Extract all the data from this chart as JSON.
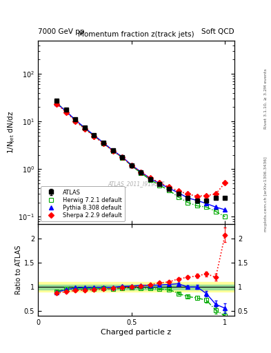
{
  "title_top_left": "7000 GeV pp",
  "title_top_right": "Soft QCD",
  "main_title": "Momentum fraction z(track jets)",
  "watermark": "ATLAS_2011_I919017",
  "right_label_top": "Rivet 3.1.10, ≥ 3.2M events",
  "right_label_bottom": "mcplots.cern.ch [arXiv:1306.3436]",
  "xlabel": "Charged particle z",
  "ylabel_main": "1/N$_\\mathregular{jet}$ dN/dz",
  "ylabel_ratio": "Ratio to ATLAS",
  "xlim": [
    0.05,
    1.05
  ],
  "ylim_main": [
    0.07,
    500
  ],
  "ylim_ratio": [
    0.4,
    2.3
  ],
  "atlas_z": [
    0.1,
    0.15,
    0.2,
    0.25,
    0.3,
    0.35,
    0.4,
    0.45,
    0.5,
    0.55,
    0.6,
    0.65,
    0.7,
    0.75,
    0.8,
    0.85,
    0.9,
    0.95,
    1.0
  ],
  "atlas_y": [
    27.0,
    17.5,
    11.0,
    7.5,
    5.2,
    3.6,
    2.5,
    1.8,
    1.2,
    0.85,
    0.62,
    0.48,
    0.38,
    0.3,
    0.25,
    0.22,
    0.22,
    0.25,
    0.25
  ],
  "atlas_yerr": [
    1.2,
    0.7,
    0.5,
    0.3,
    0.2,
    0.15,
    0.12,
    0.08,
    0.06,
    0.04,
    0.03,
    0.02,
    0.02,
    0.015,
    0.012,
    0.012,
    0.012,
    0.015,
    0.015
  ],
  "herwig_z": [
    0.1,
    0.15,
    0.2,
    0.25,
    0.3,
    0.35,
    0.4,
    0.45,
    0.5,
    0.55,
    0.6,
    0.65,
    0.7,
    0.75,
    0.8,
    0.85,
    0.9,
    0.95,
    1.0
  ],
  "herwig_y": [
    24.5,
    16.8,
    10.5,
    7.2,
    5.0,
    3.5,
    2.4,
    1.75,
    1.18,
    0.83,
    0.6,
    0.46,
    0.36,
    0.26,
    0.2,
    0.17,
    0.16,
    0.13,
    0.1
  ],
  "pythia_z": [
    0.1,
    0.15,
    0.2,
    0.25,
    0.3,
    0.35,
    0.4,
    0.45,
    0.5,
    0.55,
    0.6,
    0.65,
    0.7,
    0.75,
    0.8,
    0.85,
    0.9,
    0.95,
    1.0
  ],
  "pythia_y": [
    24.0,
    16.5,
    10.8,
    7.4,
    5.15,
    3.58,
    2.48,
    1.82,
    1.22,
    0.88,
    0.64,
    0.5,
    0.4,
    0.32,
    0.25,
    0.22,
    0.19,
    0.16,
    0.14
  ],
  "sherpa_z": [
    0.1,
    0.15,
    0.2,
    0.25,
    0.3,
    0.35,
    0.4,
    0.45,
    0.5,
    0.55,
    0.6,
    0.65,
    0.7,
    0.75,
    0.8,
    0.85,
    0.9,
    0.95,
    1.0
  ],
  "sherpa_y": [
    23.5,
    15.8,
    10.2,
    7.0,
    4.9,
    3.45,
    2.42,
    1.78,
    1.2,
    0.87,
    0.65,
    0.52,
    0.42,
    0.35,
    0.3,
    0.27,
    0.28,
    0.3,
    0.52
  ],
  "atlas_color": "#000000",
  "herwig_color": "#00aa00",
  "pythia_color": "#0000ff",
  "sherpa_color": "#ff0000",
  "band_green": [
    0.95,
    1.05
  ],
  "band_yellow": [
    0.9,
    1.1
  ],
  "herwig_ratio": [
    0.907,
    0.96,
    0.954,
    0.96,
    0.962,
    0.972,
    0.96,
    0.972,
    0.983,
    0.976,
    0.968,
    0.958,
    0.947,
    0.867,
    0.8,
    0.773,
    0.727,
    0.52,
    0.4
  ],
  "herwig_rerr": [
    0.03,
    0.02,
    0.02,
    0.02,
    0.015,
    0.015,
    0.015,
    0.015,
    0.015,
    0.015,
    0.015,
    0.015,
    0.02,
    0.025,
    0.03,
    0.04,
    0.05,
    0.07,
    0.09
  ],
  "pythia_ratio": [
    0.889,
    0.943,
    0.982,
    0.987,
    0.99,
    0.994,
    0.992,
    1.011,
    1.017,
    1.035,
    1.032,
    1.042,
    1.053,
    1.067,
    1.0,
    1.0,
    0.864,
    0.64,
    0.56
  ],
  "pythia_rerr": [
    0.03,
    0.02,
    0.02,
    0.02,
    0.015,
    0.015,
    0.015,
    0.015,
    0.015,
    0.015,
    0.015,
    0.015,
    0.02,
    0.025,
    0.03,
    0.04,
    0.06,
    0.08,
    0.1
  ],
  "sherpa_ratio": [
    0.87,
    0.903,
    0.927,
    0.933,
    0.942,
    0.958,
    0.968,
    0.989,
    1.0,
    1.024,
    1.048,
    1.083,
    1.105,
    1.167,
    1.2,
    1.227,
    1.273,
    1.2,
    2.08
  ],
  "sherpa_rerr": [
    0.03,
    0.02,
    0.02,
    0.02,
    0.015,
    0.015,
    0.015,
    0.015,
    0.015,
    0.015,
    0.015,
    0.015,
    0.02,
    0.025,
    0.03,
    0.04,
    0.05,
    0.07,
    0.15
  ]
}
